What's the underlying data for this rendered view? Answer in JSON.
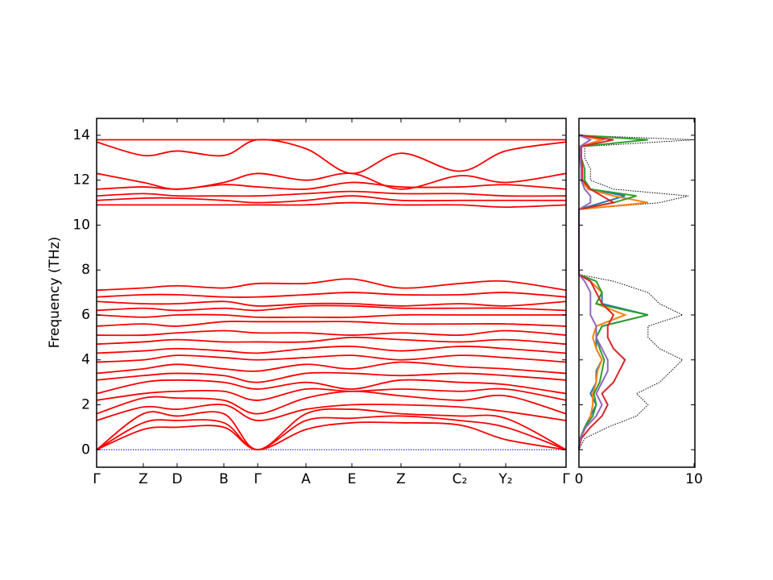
{
  "chart_data": [
    {
      "type": "band",
      "ylabel": "Frequency (THz)",
      "color": "#ff0000",
      "xlim": [
        0,
        5.83
      ],
      "xticks": [
        {
          "value": 0,
          "label": "Γ"
        },
        {
          "value": 0.58,
          "label": "Z"
        },
        {
          "value": 1.0,
          "label": "D"
        },
        {
          "value": 1.58,
          "label": "B"
        },
        {
          "value": 2.0,
          "label": "Γ"
        },
        {
          "value": 2.6,
          "label": "A"
        },
        {
          "value": 3.17,
          "label": "E"
        },
        {
          "value": 3.78,
          "label": "Z"
        },
        {
          "value": 4.51,
          "label": "C₂"
        },
        {
          "value": 5.08,
          "label": "Y₂"
        },
        {
          "value": 5.83,
          "label": "Γ"
        }
      ],
      "ylim": [
        -0.78,
        14.75
      ],
      "yticks": [
        0,
        2,
        4,
        6,
        8,
        10,
        12,
        14
      ],
      "hline": 0,
      "hline_color": "#0000ff",
      "x": [
        0,
        0.58,
        1.0,
        1.58,
        2.0,
        2.6,
        3.17,
        3.78,
        4.51,
        5.08,
        5.83
      ],
      "series": [
        {
          "values": [
            0,
            0.9,
            1.0,
            1.0,
            0,
            0.9,
            1.2,
            1.2,
            1.1,
            0.45,
            0
          ]
        },
        {
          "values": [
            0,
            1.2,
            1.3,
            1.2,
            0,
            1.3,
            1.4,
            1.5,
            1.3,
            1.0,
            0
          ]
        },
        {
          "values": [
            0,
            1.6,
            1.5,
            1.6,
            0,
            1.6,
            1.8,
            1.6,
            1.5,
            1.4,
            0
          ]
        },
        {
          "values": [
            1.3,
            1.9,
            1.8,
            2.0,
            1.3,
            1.8,
            2.0,
            2.0,
            1.9,
            1.7,
            1.3
          ]
        },
        {
          "values": [
            1.6,
            2.3,
            2.3,
            2.2,
            1.6,
            2.3,
            2.6,
            2.4,
            2.2,
            2.4,
            1.6
          ]
        },
        {
          "values": [
            2.2,
            2.5,
            2.6,
            2.6,
            2.2,
            2.7,
            2.6,
            2.7,
            2.6,
            2.7,
            2.2
          ]
        },
        {
          "values": [
            2.5,
            3.0,
            3.1,
            3.0,
            2.7,
            3.0,
            2.7,
            3.1,
            3.0,
            2.9,
            2.5
          ]
        },
        {
          "values": [
            3.1,
            3.3,
            3.4,
            3.3,
            3.0,
            3.4,
            3.4,
            3.3,
            3.4,
            3.3,
            3.1
          ]
        },
        {
          "values": [
            3.4,
            3.6,
            3.8,
            3.6,
            3.5,
            3.8,
            3.6,
            3.9,
            3.7,
            3.6,
            3.4
          ]
        },
        {
          "values": [
            3.9,
            4.0,
            4.2,
            4.1,
            4.0,
            4.1,
            4.2,
            4.0,
            4.2,
            4.1,
            3.9
          ]
        },
        {
          "values": [
            4.3,
            4.4,
            4.5,
            4.4,
            4.3,
            4.5,
            4.6,
            4.4,
            4.6,
            4.5,
            4.3
          ]
        },
        {
          "values": [
            4.7,
            4.8,
            4.9,
            4.8,
            4.8,
            4.8,
            5.0,
            4.9,
            4.8,
            4.9,
            4.7
          ]
        },
        {
          "values": [
            5.1,
            5.1,
            5.2,
            5.3,
            5.2,
            5.2,
            5.1,
            5.2,
            5.1,
            5.3,
            5.1
          ]
        },
        {
          "values": [
            5.5,
            5.6,
            5.5,
            5.7,
            5.7,
            5.7,
            5.7,
            5.6,
            5.6,
            5.6,
            5.5
          ]
        },
        {
          "values": [
            6.0,
            5.9,
            6.0,
            6.0,
            5.9,
            5.9,
            5.9,
            6.0,
            6.0,
            6.0,
            6.0
          ]
        },
        {
          "values": [
            6.2,
            6.3,
            6.2,
            6.3,
            6.2,
            6.4,
            6.4,
            6.3,
            6.3,
            6.3,
            6.2
          ]
        },
        {
          "values": [
            6.6,
            6.5,
            6.5,
            6.6,
            6.4,
            6.5,
            6.5,
            6.4,
            6.5,
            6.4,
            6.6
          ]
        },
        {
          "values": [
            6.8,
            6.9,
            6.9,
            6.8,
            6.8,
            6.9,
            7.0,
            6.9,
            6.9,
            7.0,
            6.8
          ]
        },
        {
          "values": [
            7.1,
            7.2,
            7.3,
            7.2,
            7.4,
            7.4,
            7.6,
            7.2,
            7.4,
            7.5,
            7.1
          ]
        },
        {
          "values": [
            10.9,
            10.9,
            10.9,
            10.9,
            10.9,
            10.9,
            11.0,
            10.9,
            10.9,
            10.8,
            10.9
          ]
        },
        {
          "values": [
            11.1,
            11.2,
            11.2,
            11.1,
            11.0,
            11.1,
            11.3,
            11.1,
            11.1,
            11.1,
            11.1
          ]
        },
        {
          "values": [
            11.3,
            11.4,
            11.3,
            11.3,
            11.3,
            11.4,
            11.5,
            11.4,
            11.4,
            11.3,
            11.3
          ]
        },
        {
          "values": [
            11.6,
            11.7,
            11.6,
            11.8,
            11.7,
            11.6,
            11.9,
            11.7,
            11.7,
            11.8,
            11.6
          ]
        },
        {
          "values": [
            12.3,
            11.9,
            11.6,
            11.9,
            12.3,
            12.0,
            12.3,
            11.6,
            12.2,
            11.9,
            12.3
          ]
        },
        {
          "values": [
            13.7,
            13.1,
            13.3,
            13.1,
            13.8,
            13.4,
            12.3,
            13.2,
            12.4,
            13.3,
            13.7
          ]
        },
        {
          "values": [
            13.8,
            13.8,
            13.8,
            13.8,
            13.8,
            13.8,
            13.8,
            13.8,
            13.8,
            13.8,
            13.8
          ]
        }
      ]
    },
    {
      "type": "dos",
      "xlim": [
        0,
        10
      ],
      "xticks": [
        0,
        10
      ],
      "ylim": [
        -0.78,
        14.75
      ],
      "yticks": [
        0,
        2,
        4,
        6,
        8,
        10,
        12,
        14
      ],
      "y": [
        0,
        0.5,
        1,
        1.5,
        2,
        2.5,
        3,
        3.5,
        4,
        4.5,
        5,
        5.5,
        6,
        6.5,
        7,
        7.5,
        7.8,
        10.7,
        11,
        11.3,
        11.6,
        12,
        12.5,
        13,
        13.5,
        13.8,
        14
      ],
      "series": [
        {
          "color": "#000000",
          "linestyle": "dotted",
          "values": [
            0,
            0.5,
            2.5,
            5,
            6,
            5,
            7,
            8,
            9,
            7,
            6,
            6,
            9,
            7,
            6,
            3,
            0,
            0,
            7,
            9.5,
            3,
            1,
            1,
            0.5,
            0.5,
            10,
            0
          ]
        },
        {
          "color": "#1f77b4",
          "linestyle": "solid",
          "values": [
            0,
            0.1,
            0.5,
            1,
            1.5,
            1,
            1.5,
            1.5,
            2,
            1.5,
            1.5,
            2,
            6,
            2,
            2,
            1,
            0,
            0,
            2,
            4,
            1,
            0.3,
            0.3,
            0.2,
            0.2,
            2,
            0
          ]
        },
        {
          "color": "#ff7f0e",
          "linestyle": "solid",
          "values": [
            0,
            0.1,
            0.6,
            1,
            1.2,
            1.2,
            1.5,
            1.6,
            2,
            1.5,
            1.2,
            1.5,
            4,
            1.5,
            2,
            1,
            0,
            0,
            6,
            3,
            0.8,
            0.2,
            0.2,
            0.1,
            0.1,
            2,
            0
          ]
        },
        {
          "color": "#2ca02c",
          "linestyle": "solid",
          "values": [
            0,
            0.1,
            0.5,
            1.2,
            1.5,
            1.3,
            1.8,
            2,
            2.2,
            1.8,
            1.5,
            2,
            6,
            1.5,
            2,
            1.5,
            0,
            0,
            3,
            5,
            1,
            0.5,
            0.5,
            0.2,
            0.2,
            6,
            0
          ]
        },
        {
          "color": "#d62728",
          "linestyle": "solid",
          "values": [
            0,
            0.2,
            1,
            2,
            2.5,
            2,
            3,
            3.5,
            4,
            3,
            2.5,
            2.5,
            3,
            2,
            1.5,
            1,
            0,
            0,
            3,
            2,
            1,
            0.3,
            0.3,
            0.2,
            0.2,
            3,
            0
          ]
        },
        {
          "color": "#9467bd",
          "linestyle": "solid",
          "values": [
            0,
            0.1,
            0.6,
            1.5,
            2,
            1.5,
            2,
            2.5,
            2.5,
            2,
            1.5,
            1.5,
            1,
            1,
            1,
            0.5,
            0,
            0,
            1,
            1,
            0.5,
            0.2,
            0.2,
            0.1,
            0.1,
            1,
            0
          ]
        }
      ]
    }
  ]
}
